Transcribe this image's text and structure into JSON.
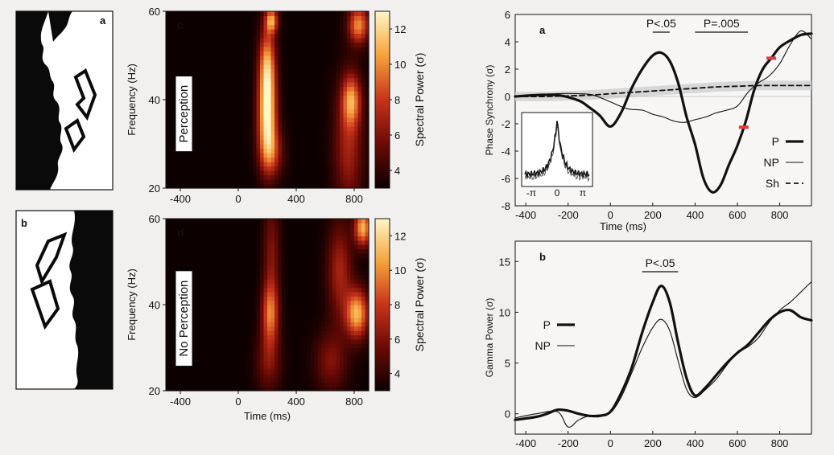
{
  "figure": {
    "colors": {
      "background": "#f1f0ef",
      "ink": "#111111",
      "heat_low": "#0d0000",
      "heat_mid": "#c8331b",
      "heat_high": "#fff3b0",
      "marker": "#e23b3b",
      "band": "#cfcfcf"
    }
  },
  "stimuli": [
    {
      "label": "a",
      "description": "Mooney face stimulus, upright (perceived)"
    },
    {
      "label": "b",
      "description": "Mooney face stimulus, inverted (not perceived)"
    }
  ],
  "chart_data": [
    {
      "id": "heatmap-c",
      "type": "heatmap",
      "panel_label": "c",
      "condition_label": "Perception",
      "ylabel": "Frequency (Hz)",
      "xlabel": "",
      "x_ticks": [
        "-400",
        "0",
        "400",
        "800"
      ],
      "y_ticks": [
        "20",
        "40",
        "60"
      ],
      "xlim": [
        -500,
        900
      ],
      "ylim": [
        20,
        60
      ],
      "colorbar_label": "Spectral Power (σ)",
      "colorbar_ticks": [
        "4",
        "6",
        "8",
        "10",
        "12"
      ],
      "colorbar_range": [
        3,
        13
      ],
      "blobs": [
        {
          "t": 200,
          "f": 36,
          "st": 45,
          "sf": 7,
          "amp": 9
        },
        {
          "t": 200,
          "f": 48,
          "st": 40,
          "sf": 6,
          "amp": 7
        },
        {
          "t": 230,
          "f": 58,
          "st": 30,
          "sf": 2,
          "amp": 7
        },
        {
          "t": 230,
          "f": 28,
          "st": 55,
          "sf": 4,
          "amp": 4
        },
        {
          "t": 780,
          "f": 40,
          "st": 45,
          "sf": 4,
          "amp": 6
        },
        {
          "t": 830,
          "f": 57,
          "st": 50,
          "sf": 3,
          "amp": 7
        },
        {
          "t": 760,
          "f": 30,
          "st": 70,
          "sf": 10,
          "amp": 4
        }
      ]
    },
    {
      "id": "heatmap-d",
      "type": "heatmap",
      "panel_label": "d",
      "condition_label": "No Perception",
      "ylabel": "Frequency (Hz)",
      "xlabel": "Time (ms)",
      "x_ticks": [
        "-400",
        "0",
        "400",
        "800"
      ],
      "y_ticks": [
        "20",
        "40",
        "60"
      ],
      "xlim": [
        -500,
        900
      ],
      "ylim": [
        20,
        60
      ],
      "colorbar_label": "Spectral Power (σ)",
      "colorbar_ticks": [
        "4",
        "6",
        "8",
        "10",
        "12"
      ],
      "colorbar_range": [
        3,
        13
      ],
      "blobs": [
        {
          "t": 220,
          "f": 38,
          "st": 40,
          "sf": 5,
          "amp": 6
        },
        {
          "t": 230,
          "f": 52,
          "st": 40,
          "sf": 9,
          "amp": 3
        },
        {
          "t": 210,
          "f": 27,
          "st": 60,
          "sf": 5,
          "amp": 3
        },
        {
          "t": 820,
          "f": 38,
          "st": 55,
          "sf": 4,
          "amp": 8
        },
        {
          "t": 860,
          "f": 58,
          "st": 40,
          "sf": 3,
          "amp": 8
        },
        {
          "t": 700,
          "f": 48,
          "st": 60,
          "sf": 8,
          "amp": 4
        },
        {
          "t": 640,
          "f": 27,
          "st": 80,
          "sf": 5,
          "amp": 3
        }
      ]
    },
    {
      "id": "phase-sync",
      "type": "line",
      "panel_label": "a",
      "xlabel": "Time (ms)",
      "ylabel": "Phase Synchrony (σ)",
      "xlim": [
        -450,
        950
      ],
      "ylim": [
        -8,
        6
      ],
      "x_ticks": [
        -400,
        -200,
        0,
        200,
        400,
        600,
        800
      ],
      "y_ticks": [
        -8,
        -6,
        -4,
        -2,
        0,
        2,
        4,
        6
      ],
      "significance": [
        {
          "label": "P<.05",
          "from": 200,
          "to": 280
        },
        {
          "label": "P=.005",
          "from": 400,
          "to": 650
        }
      ],
      "markers_at": [
        630,
        760
      ],
      "legend": [
        {
          "label": "P",
          "style": "thick"
        },
        {
          "label": "NP",
          "style": "thin"
        },
        {
          "label": "Sh",
          "style": "dashed"
        }
      ],
      "series": [
        {
          "name": "P",
          "x": [
            -450,
            -350,
            -250,
            -150,
            -100,
            -50,
            0,
            50,
            100,
            150,
            200,
            240,
            280,
            320,
            360,
            400,
            440,
            480,
            520,
            560,
            600,
            640,
            680,
            720,
            760,
            800,
            850,
            900,
            950
          ],
          "y": [
            0,
            0.1,
            0.1,
            -0.3,
            -0.8,
            -1.4,
            -2.2,
            -1.2,
            0.6,
            2.0,
            3.0,
            3.2,
            2.6,
            1.0,
            -1.5,
            -3.5,
            -6.0,
            -7.0,
            -6.5,
            -5.0,
            -3.6,
            -1.8,
            0.5,
            2.0,
            2.8,
            3.6,
            4.1,
            4.5,
            4.6
          ]
        },
        {
          "name": "NP",
          "x": [
            -450,
            -350,
            -250,
            -150,
            -80,
            0,
            80,
            150,
            200,
            250,
            300,
            350,
            400,
            450,
            500,
            550,
            600,
            650,
            700,
            750,
            800,
            850,
            900,
            950
          ],
          "y": [
            0,
            0.1,
            0.2,
            0.2,
            0.1,
            -0.4,
            -0.9,
            -1.0,
            -1.3,
            -1.5,
            -1.8,
            -1.9,
            -1.7,
            -1.5,
            -1.2,
            -1.0,
            -0.7,
            0.3,
            1.0,
            1.5,
            2.4,
            3.8,
            4.8,
            4.2
          ]
        },
        {
          "name": "Sh",
          "x": [
            -450,
            -300,
            -100,
            0,
            100,
            200,
            300,
            400,
            500,
            600,
            700,
            800,
            900,
            950
          ],
          "y": [
            0,
            0,
            0.1,
            0.2,
            0.3,
            0.4,
            0.5,
            0.6,
            0.7,
            0.75,
            0.8,
            0.8,
            0.8,
            0.8
          ],
          "band": 0.35
        }
      ],
      "inset": {
        "x_ticks": [
          "-π",
          "0",
          "π"
        ],
        "description": "phase difference histogram"
      }
    },
    {
      "id": "gamma-power",
      "type": "line",
      "panel_label": "b",
      "xlabel": "",
      "ylabel": "Gamma Power (σ)",
      "xlim": [
        -450,
        950
      ],
      "ylim": [
        -2,
        17
      ],
      "x_ticks": [
        -400,
        -200,
        0,
        200,
        400,
        600,
        800
      ],
      "y_ticks": [
        0,
        5,
        10,
        15
      ],
      "significance": [
        {
          "label": "P<.05",
          "from": 150,
          "to": 320
        }
      ],
      "legend": [
        {
          "label": "P",
          "style": "thick"
        },
        {
          "label": "NP",
          "style": "thin"
        }
      ],
      "series": [
        {
          "name": "P",
          "x": [
            -450,
            -350,
            -300,
            -250,
            -200,
            -150,
            -100,
            -50,
            0,
            50,
            100,
            150,
            200,
            240,
            280,
            320,
            360,
            400,
            450,
            500,
            550,
            600,
            650,
            700,
            750,
            800,
            850,
            900,
            950
          ],
          "y": [
            -0.6,
            -0.3,
            0.0,
            0.4,
            0.3,
            0.0,
            -0.2,
            -0.2,
            0.2,
            2.0,
            4.5,
            8.0,
            11.0,
            12.6,
            11.0,
            7.0,
            3.5,
            1.8,
            2.6,
            3.8,
            5.0,
            6.0,
            6.8,
            8.0,
            9.2,
            10.0,
            10.2,
            9.5,
            9.2
          ]
        },
        {
          "name": "NP",
          "x": [
            -450,
            -350,
            -250,
            -200,
            -150,
            -100,
            -50,
            0,
            50,
            100,
            150,
            200,
            240,
            280,
            320,
            360,
            400,
            450,
            500,
            550,
            600,
            650,
            700,
            750,
            800,
            850,
            900,
            950
          ],
          "y": [
            -0.4,
            0.0,
            0.2,
            -1.3,
            -0.6,
            -0.2,
            -0.1,
            0.1,
            1.6,
            4.0,
            6.5,
            8.5,
            9.3,
            8.2,
            5.2,
            2.4,
            1.6,
            2.4,
            3.4,
            4.8,
            6.0,
            6.6,
            7.5,
            9.0,
            10.2,
            11.0,
            12.0,
            13.0
          ]
        }
      ]
    }
  ]
}
